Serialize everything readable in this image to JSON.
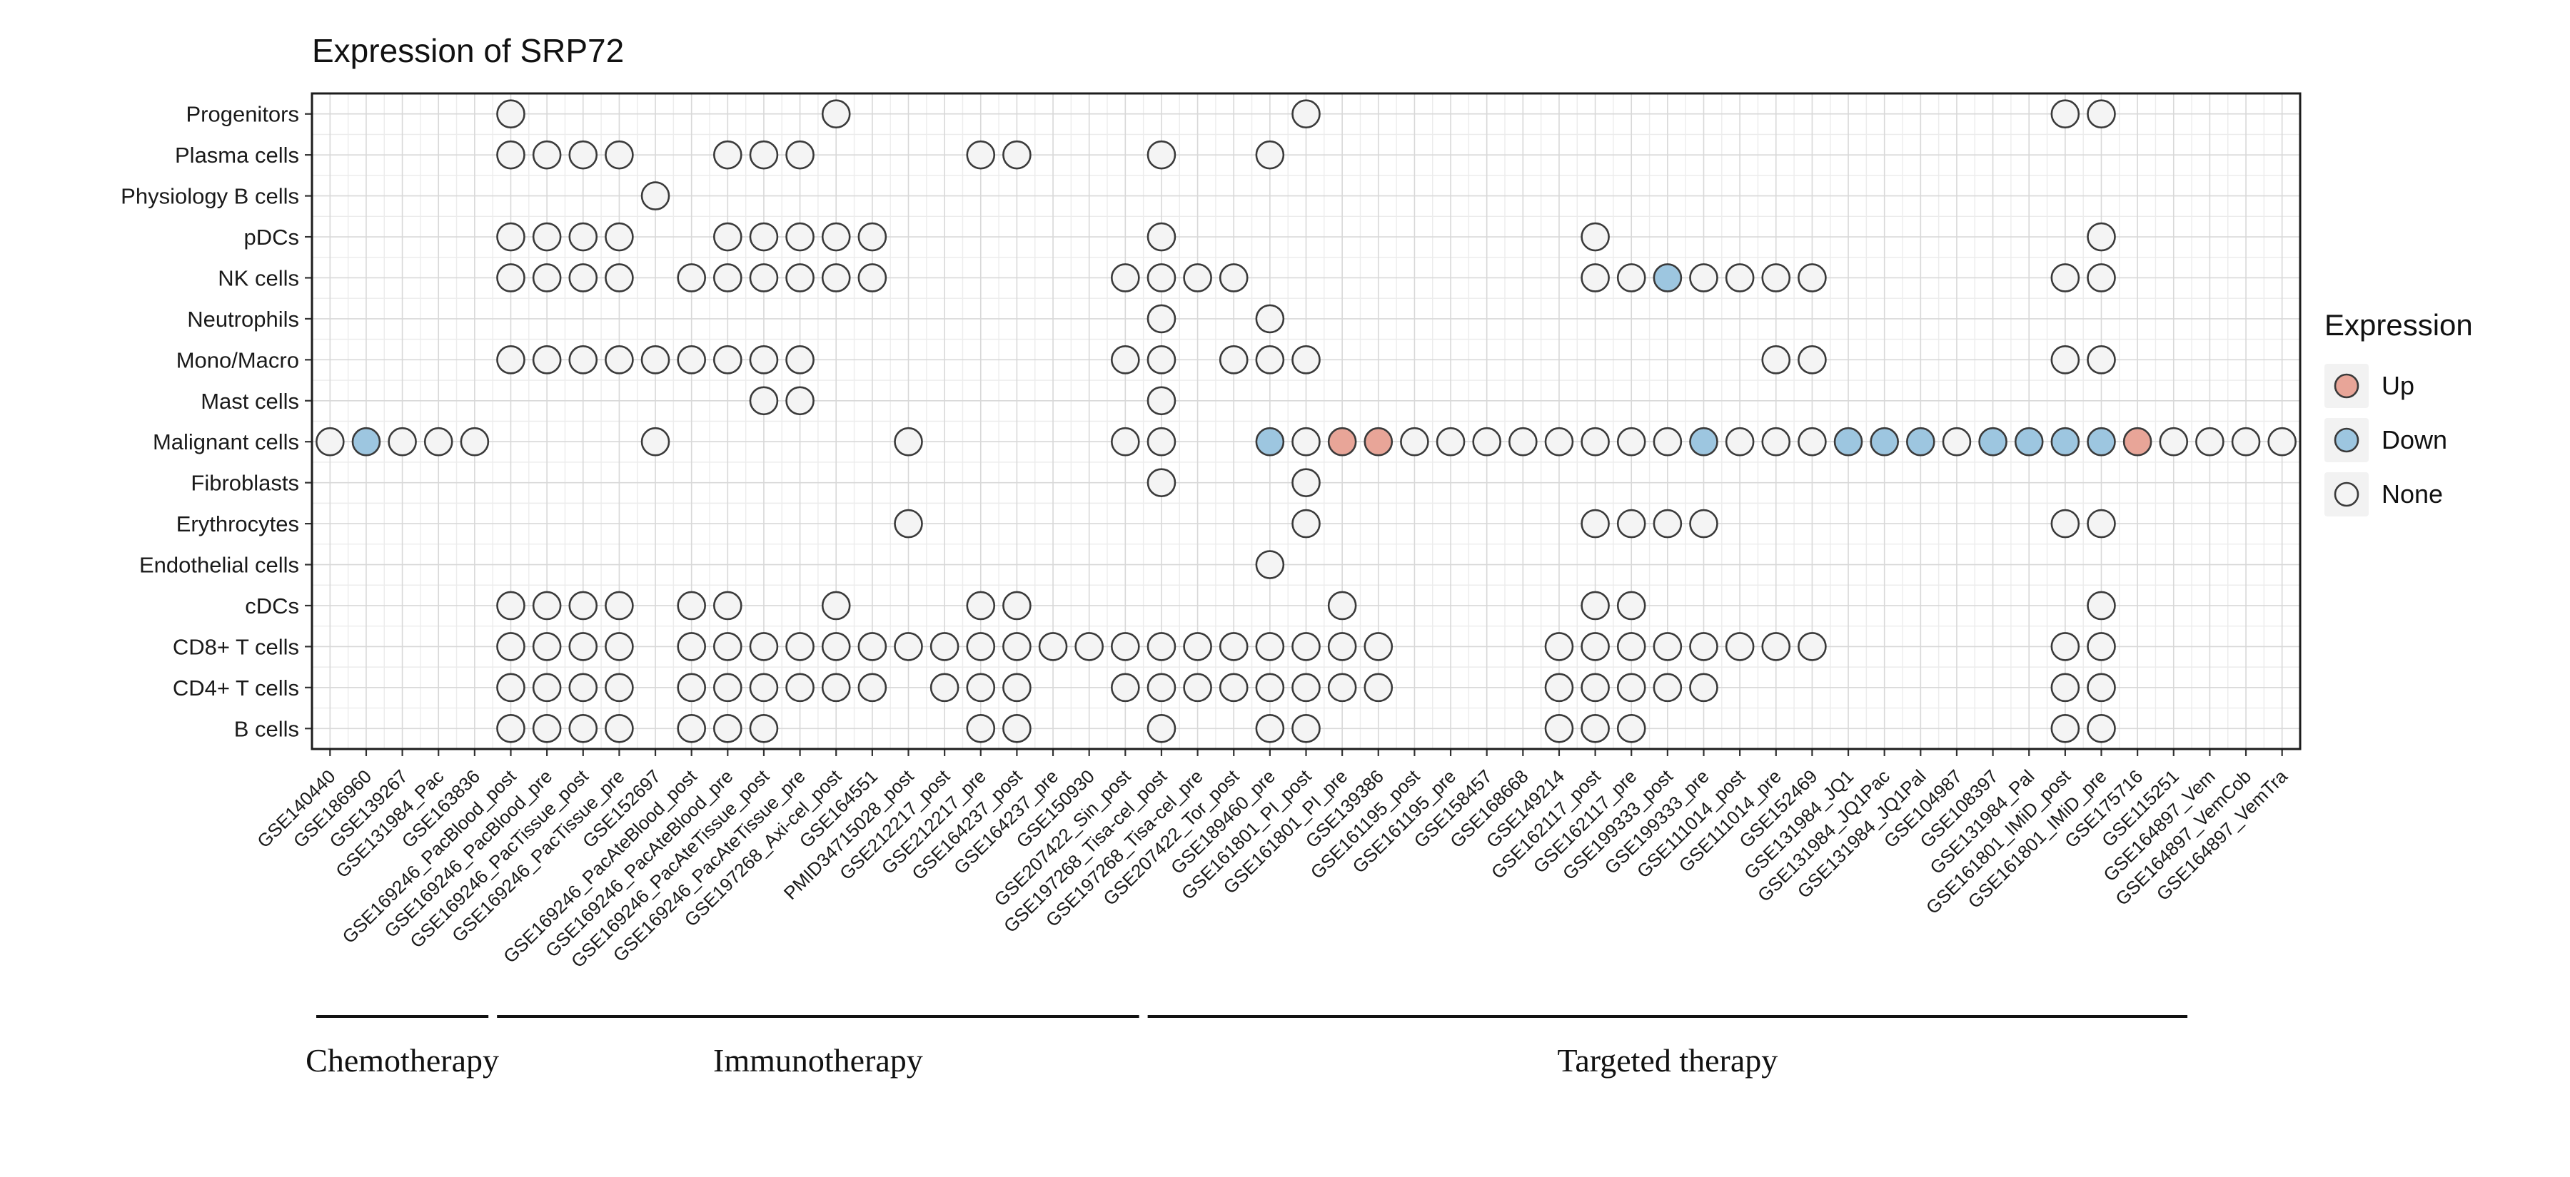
{
  "chart_data": {
    "type": "dot-matrix",
    "title": "Expression of SRP72",
    "rows": [
      "Progenitors",
      "Plasma cells",
      "Physiology B cells",
      "pDCs",
      "NK cells",
      "Neutrophils",
      "Mono/Macro",
      "Mast cells",
      "Malignant cells",
      "Fibroblasts",
      "Erythrocytes",
      "Endothelial cells",
      "cDCs",
      "CD8+ T cells",
      "CD4+ T cells",
      "B cells"
    ],
    "columns": [
      "GSE140440",
      "GSE186960",
      "GSE139267",
      "GSE131984_Pac",
      "GSE163836",
      "GSE169246_PacBlood_post",
      "GSE169246_PacBlood_pre",
      "GSE169246_PacTissue_post",
      "GSE169246_PacTissue_pre",
      "GSE152697",
      "GSE169246_PacAteBlood_post",
      "GSE169246_PacAteBlood_pre",
      "GSE169246_PacAteTissue_post",
      "GSE169246_PacAteTissue_pre",
      "GSE197268_Axi-cel_post",
      "GSE164551",
      "PMID34715028_post",
      "GSE212217_post",
      "GSE212217_pre",
      "GSE164237_post",
      "GSE164237_pre",
      "GSE150930",
      "GSE207422_Sin_post",
      "GSE197268_Tisa-cel_post",
      "GSE197268_Tisa-cel_pre",
      "GSE207422_Tor_post",
      "GSE189460_pre",
      "GSE161801_PI_post",
      "GSE161801_PI_pre",
      "GSE139386",
      "GSE161195_post",
      "GSE161195_pre",
      "GSE158457",
      "GSE168668",
      "GSE149214",
      "GSE162117_post",
      "GSE162117_pre",
      "GSE199333_post",
      "GSE199333_pre",
      "GSE111014_post",
      "GSE111014_pre",
      "GSE152469",
      "GSE131984_JQ1",
      "GSE131984_JQ1Pac",
      "GSE131984_JQ1Pal",
      "GSE104987",
      "GSE108397",
      "GSE131984_Pal",
      "GSE161801_IMiD_post",
      "GSE161801_IMiD_pre",
      "GSE175716",
      "GSE115251",
      "GSE164897_Vem",
      "GSE164897_VemCob",
      "GSE164897_VemTra"
    ],
    "groups": [
      {
        "label": "Chemotherapy",
        "col_start": 0,
        "col_end": 4
      },
      {
        "label": "Immunotherapy",
        "col_start": 5,
        "col_end": 22
      },
      {
        "label": "Targeted therapy",
        "col_start": 23,
        "col_end": 51
      }
    ],
    "legend": {
      "title": "Expression",
      "items": [
        {
          "label": "Up",
          "state": "up",
          "color": "#E8A598"
        },
        {
          "label": "Down",
          "state": "down",
          "color": "#9DC6E0"
        },
        {
          "label": "None",
          "state": "none",
          "color": "#F4F4F4"
        }
      ]
    },
    "colors": {
      "up": "#E8A598",
      "down": "#9DC6E0",
      "none": "#F4F4F4",
      "stroke": "#3A3A3A",
      "grid": "#D8D8D8",
      "grid_minor": "#ECECEC",
      "panel_border": "#1C1C1C"
    },
    "dots": [
      {
        "row": "Progenitors",
        "none": [
          5,
          14,
          27,
          48,
          49
        ],
        "down": [],
        "up": []
      },
      {
        "row": "Plasma cells",
        "none": [
          5,
          6,
          7,
          8,
          11,
          12,
          13,
          18,
          19,
          23,
          26
        ],
        "down": [],
        "up": []
      },
      {
        "row": "Physiology B cells",
        "none": [
          9
        ],
        "down": [],
        "up": []
      },
      {
        "row": "pDCs",
        "none": [
          5,
          6,
          7,
          8,
          11,
          12,
          13,
          14,
          15,
          23,
          35,
          49
        ],
        "down": [],
        "up": []
      },
      {
        "row": "NK cells",
        "none": [
          5,
          6,
          7,
          8,
          10,
          11,
          12,
          13,
          14,
          15,
          22,
          23,
          24,
          25,
          35,
          36,
          38,
          39,
          40,
          41,
          48,
          49
        ],
        "down": [
          37
        ],
        "up": []
      },
      {
        "row": "Neutrophils",
        "none": [
          23,
          26
        ],
        "down": [],
        "up": []
      },
      {
        "row": "Mono/Macro",
        "none": [
          5,
          6,
          7,
          8,
          9,
          10,
          11,
          12,
          13,
          22,
          23,
          25,
          26,
          27,
          40,
          41,
          48,
          49
        ],
        "down": [],
        "up": []
      },
      {
        "row": "Mast cells",
        "none": [
          12,
          13,
          23
        ],
        "down": [],
        "up": []
      },
      {
        "row": "Malignant cells",
        "none": [
          0,
          2,
          3,
          4,
          9,
          16,
          22,
          23,
          27,
          30,
          31,
          32,
          33,
          34,
          35,
          36,
          37,
          39,
          40,
          41,
          45,
          51,
          52,
          53,
          54
        ],
        "down": [
          1,
          26,
          38,
          42,
          43,
          44,
          46,
          47,
          48,
          49
        ],
        "up": [
          28,
          29,
          50
        ]
      },
      {
        "row": "Fibroblasts",
        "none": [
          23,
          27
        ],
        "down": [],
        "up": []
      },
      {
        "row": "Erythrocytes",
        "none": [
          16,
          27,
          35,
          36,
          37,
          38,
          48,
          49
        ],
        "down": [],
        "up": []
      },
      {
        "row": "Endothelial cells",
        "none": [
          26
        ],
        "down": [],
        "up": []
      },
      {
        "row": "cDCs",
        "none": [
          5,
          6,
          7,
          8,
          10,
          11,
          14,
          18,
          19,
          28,
          35,
          36,
          49
        ],
        "down": [],
        "up": []
      },
      {
        "row": "CD8+ T cells",
        "none": [
          5,
          6,
          7,
          8,
          10,
          11,
          12,
          13,
          14,
          15,
          16,
          17,
          18,
          19,
          20,
          21,
          22,
          23,
          24,
          25,
          26,
          27,
          28,
          29,
          34,
          35,
          36,
          37,
          38,
          39,
          40,
          41,
          48,
          49
        ],
        "down": [],
        "up": []
      },
      {
        "row": "CD4+ T cells",
        "none": [
          5,
          6,
          7,
          8,
          10,
          11,
          12,
          13,
          14,
          15,
          17,
          18,
          19,
          22,
          23,
          24,
          25,
          26,
          27,
          28,
          29,
          34,
          35,
          36,
          37,
          38,
          48,
          49
        ],
        "down": [],
        "up": []
      },
      {
        "row": "B cells",
        "none": [
          5,
          6,
          7,
          8,
          10,
          11,
          12,
          18,
          19,
          23,
          26,
          27,
          34,
          35,
          36,
          48,
          49
        ],
        "down": [],
        "up": []
      }
    ]
  }
}
